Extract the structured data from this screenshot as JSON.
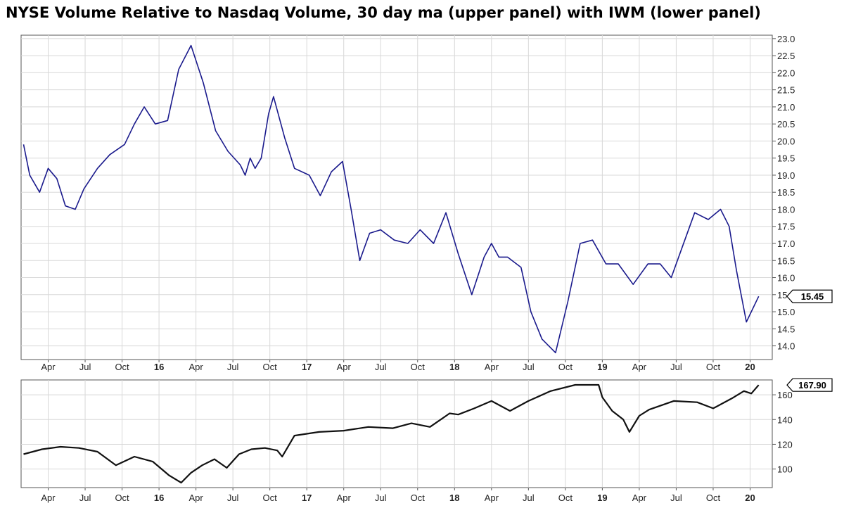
{
  "chart_data": [
    {
      "type": "line",
      "panel": "upper",
      "title": "NYSE Volume Relative to Nasdaq Volume, 30 day ma (upper panel) with IWM (lower panel)",
      "series_name": "NYSE/Nasdaq volume ratio, 30 day ma",
      "color": "#1a1a8c",
      "ylim": [
        13.6,
        23.1
      ],
      "yticks": [
        14.0,
        14.5,
        15.0,
        15.5,
        16.0,
        16.5,
        17.0,
        17.5,
        18.0,
        18.5,
        19.0,
        19.5,
        20.0,
        20.5,
        21.0,
        21.5,
        22.0,
        22.5,
        23.0
      ],
      "ytick_labels": [
        "14.0",
        "14.5",
        "15.0",
        "15.5",
        "16.0",
        "16.5",
        "17.0",
        "17.5",
        "18.0",
        "18.5",
        "19.0",
        "19.5",
        "20.0",
        "20.5",
        "21.0",
        "21.5",
        "22.0",
        "22.5",
        "23.0"
      ],
      "last_value_label": "15.45",
      "last_value": 15.45,
      "x_start": "2015-02",
      "x_end": "2020-02",
      "x": [
        0.0,
        0.5,
        1.3,
        2.0,
        2.7,
        3.4,
        4.2,
        4.9,
        6.0,
        7.0,
        8.2,
        9.0,
        9.8,
        10.7,
        11.7,
        12.6,
        13.6,
        14.6,
        15.6,
        16.6,
        17.6,
        18.0,
        18.4,
        18.8,
        19.3,
        19.9,
        20.3,
        21.2,
        22.0,
        22.6,
        23.2,
        24.1,
        25.0,
        25.9,
        26.6,
        27.3,
        28.1,
        29.0,
        30.1,
        31.2,
        32.2,
        33.3,
        34.3,
        35.3,
        36.4,
        37.4,
        38.0,
        38.6,
        39.3,
        40.4,
        41.2,
        42.1,
        43.2,
        44.2,
        45.2,
        46.2,
        47.3,
        48.3,
        49.5,
        50.7,
        51.7,
        52.6,
        53.4,
        54.5,
        55.6,
        56.6,
        57.3,
        57.9,
        58.7,
        59.7
      ],
      "values": [
        19.9,
        19.0,
        18.5,
        19.2,
        18.9,
        18.1,
        18.0,
        18.6,
        19.2,
        19.6,
        19.9,
        20.5,
        21.0,
        20.5,
        20.6,
        22.1,
        22.8,
        21.7,
        20.3,
        19.7,
        19.3,
        19.0,
        19.5,
        19.2,
        19.5,
        20.8,
        21.3,
        20.1,
        19.2,
        19.1,
        19.0,
        18.4,
        19.1,
        19.4,
        18.0,
        16.5,
        17.3,
        17.4,
        17.1,
        17.0,
        17.4,
        17.0,
        17.9,
        16.7,
        15.5,
        16.6,
        17.0,
        16.6,
        16.6,
        16.3,
        15.0,
        14.2,
        13.8,
        15.3,
        17.0,
        17.1,
        16.4,
        16.4,
        15.8,
        16.4,
        16.4,
        16.0,
        16.8,
        17.9,
        17.7,
        18.0,
        17.5,
        16.2,
        14.7,
        15.45
      ]
    },
    {
      "type": "line",
      "panel": "lower",
      "series_name": "IWM",
      "color": "#111111",
      "ylim": [
        85,
        172
      ],
      "yticks": [
        100,
        120,
        140,
        160
      ],
      "ytick_labels": [
        "100",
        "120",
        "140",
        "160"
      ],
      "last_value_label": "167.90",
      "last_value": 167.9,
      "x_start": "2015-02",
      "x_end": "2020-02",
      "x": [
        0.0,
        1.5,
        3.0,
        4.5,
        6.0,
        7.5,
        9.0,
        10.5,
        11.8,
        12.8,
        13.6,
        14.5,
        15.5,
        16.5,
        17.5,
        18.5,
        19.6,
        20.6,
        21.0,
        22.0,
        24.0,
        26.0,
        28.0,
        30.0,
        31.5,
        33.0,
        34.6,
        35.3,
        36.6,
        38.0,
        39.5,
        41.0,
        42.8,
        44.8,
        46.7,
        47.0,
        47.8,
        48.7,
        49.2,
        50.0,
        50.8,
        52.8,
        54.7,
        56.0,
        57.5,
        58.5,
        59.1,
        59.7
      ],
      "values": [
        112,
        116,
        118,
        117,
        114,
        103,
        110,
        106,
        95,
        89,
        97,
        103,
        108,
        101,
        112,
        116,
        117,
        115,
        110,
        127,
        130,
        131,
        134,
        133,
        137,
        134,
        145,
        144,
        149,
        155,
        147,
        155,
        163,
        168,
        168,
        158,
        147,
        140,
        130,
        143,
        148,
        155,
        154,
        149,
        157,
        163,
        161,
        167.9
      ]
    }
  ],
  "x_axis": {
    "ticks": [
      {
        "label": "Apr",
        "month": 2,
        "bold": false
      },
      {
        "label": "Jul",
        "month": 5,
        "bold": false
      },
      {
        "label": "Oct",
        "month": 8,
        "bold": false
      },
      {
        "label": "16",
        "month": 11,
        "bold": true
      },
      {
        "label": "Apr",
        "month": 14,
        "bold": false
      },
      {
        "label": "Jul",
        "month": 17,
        "bold": false
      },
      {
        "label": "Oct",
        "month": 20,
        "bold": false
      },
      {
        "label": "17",
        "month": 23,
        "bold": true
      },
      {
        "label": "Apr",
        "month": 26,
        "bold": false
      },
      {
        "label": "Jul",
        "month": 29,
        "bold": false
      },
      {
        "label": "Oct",
        "month": 32,
        "bold": false
      },
      {
        "label": "18",
        "month": 35,
        "bold": true
      },
      {
        "label": "Apr",
        "month": 38,
        "bold": false
      },
      {
        "label": "Jul",
        "month": 41,
        "bold": false
      },
      {
        "label": "Oct",
        "month": 44,
        "bold": false
      },
      {
        "label": "19",
        "month": 47,
        "bold": true
      },
      {
        "label": "Apr",
        "month": 50,
        "bold": false
      },
      {
        "label": "Jul",
        "month": 53,
        "bold": false
      },
      {
        "label": "Oct",
        "month": 56,
        "bold": false
      },
      {
        "label": "20",
        "month": 59,
        "bold": true
      }
    ]
  },
  "colors": {
    "grid": "#d8d8d8",
    "axis": "#555555",
    "upper_line": "#1a1a8c",
    "lower_line": "#111111"
  }
}
